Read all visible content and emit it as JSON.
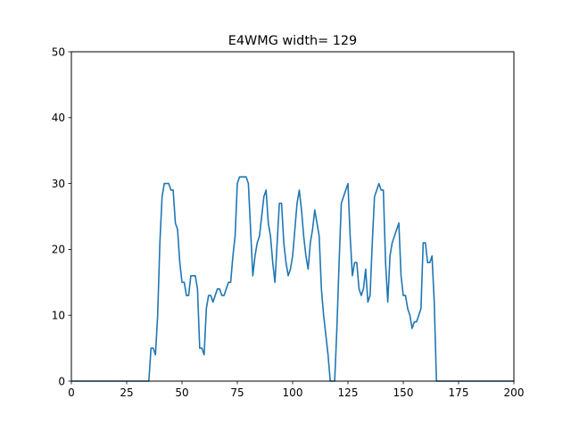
{
  "chart_data": {
    "type": "line",
    "title": "E4WMG width= 129",
    "xlabel": "",
    "ylabel": "",
    "xlim": [
      0,
      200
    ],
    "ylim": [
      0,
      50
    ],
    "x_ticks": [
      0,
      25,
      50,
      75,
      100,
      125,
      150,
      175,
      200
    ],
    "y_ticks": [
      0,
      10,
      20,
      30,
      40,
      50
    ],
    "grid": false,
    "legend": "none",
    "series": [
      {
        "color": "#1f77b4",
        "x": [
          0,
          35,
          36,
          37,
          38,
          39,
          40,
          41,
          42,
          43,
          44,
          45,
          46,
          47,
          48,
          49,
          50,
          51,
          52,
          53,
          54,
          55,
          56,
          57,
          58,
          59,
          60,
          61,
          62,
          63,
          64,
          65,
          66,
          67,
          68,
          69,
          70,
          71,
          72,
          73,
          74,
          75,
          76,
          77,
          78,
          79,
          80,
          81,
          82,
          83,
          84,
          85,
          86,
          87,
          88,
          89,
          90,
          91,
          92,
          93,
          94,
          95,
          96,
          97,
          98,
          99,
          100,
          101,
          102,
          103,
          104,
          105,
          106,
          107,
          108,
          109,
          110,
          111,
          112,
          113,
          114,
          115,
          116,
          117,
          118,
          119,
          120,
          121,
          122,
          123,
          124,
          125,
          126,
          127,
          128,
          129,
          130,
          131,
          132,
          133,
          134,
          135,
          136,
          137,
          138,
          139,
          140,
          141,
          142,
          143,
          144,
          145,
          146,
          147,
          148,
          149,
          150,
          151,
          152,
          153,
          154,
          155,
          156,
          157,
          158,
          159,
          160,
          161,
          162,
          163,
          164,
          165,
          200
        ],
        "y": [
          0,
          0,
          5,
          5,
          4,
          10,
          21,
          28,
          30,
          30,
          30,
          29,
          29,
          24,
          23,
          18,
          15,
          15,
          13,
          13,
          16,
          16,
          16,
          14,
          5,
          5,
          4,
          11,
          13,
          13,
          12,
          13,
          14,
          14,
          13,
          13,
          14,
          15,
          15,
          19,
          22,
          30,
          31,
          31,
          31,
          31,
          30,
          23,
          16,
          19,
          21,
          22,
          25,
          28,
          29,
          24,
          22,
          18,
          15,
          21,
          27,
          27,
          21,
          18,
          16,
          17,
          19,
          23,
          27,
          29,
          26,
          22,
          19,
          17,
          21,
          23,
          26,
          24,
          22,
          14,
          10,
          7,
          4,
          0,
          0,
          0,
          8,
          18,
          27,
          28,
          29,
          30,
          22,
          16,
          18,
          18,
          14,
          13,
          14,
          17,
          12,
          13,
          21,
          28,
          29,
          30,
          29,
          29,
          18,
          12,
          19,
          21,
          22,
          23,
          24,
          16,
          13,
          13,
          11,
          10,
          8,
          9,
          9,
          10,
          11,
          21,
          21,
          18,
          18,
          19,
          12,
          0,
          0
        ]
      }
    ]
  }
}
